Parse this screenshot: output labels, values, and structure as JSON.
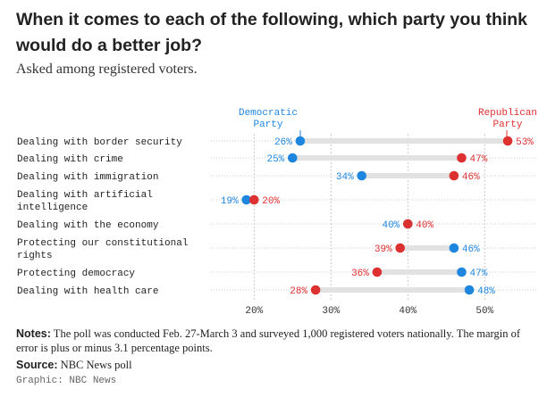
{
  "title": "When it comes to each of the following, which party you think would do a better job?",
  "subtitle": "Asked among registered voters.",
  "colors": {
    "democratic": "#1f86e0",
    "republican": "#dd3030",
    "connector": "#e2e2e2",
    "grid": "#bbbbbb",
    "text": "#222222"
  },
  "chart_data": {
    "type": "dot",
    "legend": {
      "democratic": [
        "Democratic",
        "Party"
      ],
      "republican": [
        "Republican",
        "Party"
      ]
    },
    "xlim": [
      14,
      56
    ],
    "xticks": [
      20,
      30,
      40,
      50
    ],
    "xtick_labels": [
      "20%",
      "30%",
      "40%",
      "50%"
    ],
    "categories": [
      {
        "label": [
          "Dealing with border security"
        ],
        "dem": 26,
        "rep": 53,
        "dem_label": "26%",
        "rep_label": "53%"
      },
      {
        "label": [
          "Dealing with crime"
        ],
        "dem": 25,
        "rep": 47,
        "dem_label": "25%",
        "rep_label": "47%"
      },
      {
        "label": [
          "Dealing with immigration"
        ],
        "dem": 34,
        "rep": 46,
        "dem_label": "34%",
        "rep_label": "46%"
      },
      {
        "label": [
          "Dealing with artificial",
          "intelligence"
        ],
        "dem": 19,
        "rep": 20,
        "dem_label": "19%",
        "rep_label": "20%"
      },
      {
        "label": [
          "Dealing with the economy"
        ],
        "dem": 40,
        "rep": 40,
        "dem_label": "40%",
        "rep_label": "40%"
      },
      {
        "label": [
          "Protecting our constitutional",
          "rights"
        ],
        "dem": 46,
        "rep": 39,
        "dem_label": "46%",
        "rep_label": "39%"
      },
      {
        "label": [
          "Protecting democracy"
        ],
        "dem": 47,
        "rep": 36,
        "dem_label": "47%",
        "rep_label": "36%"
      },
      {
        "label": [
          "Dealing with health care"
        ],
        "dem": 48,
        "rep": 28,
        "dem_label": "48%",
        "rep_label": "28%"
      }
    ]
  },
  "notes": {
    "label": "Notes:",
    "text": " The poll was conducted Feb. 27-March 3 and surveyed 1,000 registered voters nationally. The margin of error is plus or minus 3.1 percentage points."
  },
  "source": {
    "label": "Source:",
    "text": " NBC News poll"
  },
  "credit": "Graphic: NBC News"
}
